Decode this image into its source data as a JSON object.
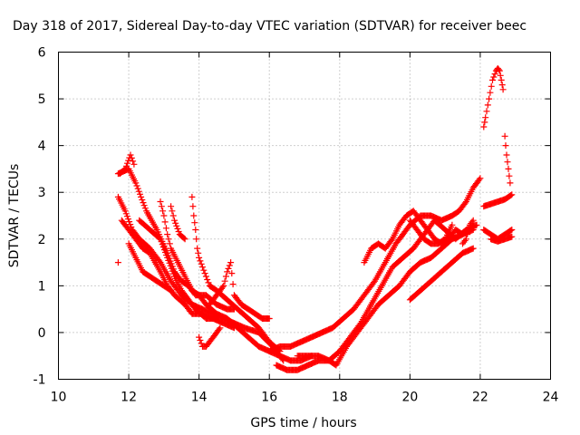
{
  "chart_data": {
    "type": "scatter",
    "title": "Day 318 of 2017, Sidereal Day-to-day VTEC variation (SDTVAR) for receiver beec",
    "xlabel": "GPS time / hours",
    "ylabel": "SDTVAR / TECUs",
    "xlim": [
      10,
      24
    ],
    "ylim": [
      -1,
      6
    ],
    "xticks": [
      "10",
      "12",
      "14",
      "16",
      "18",
      "20",
      "22",
      "24"
    ],
    "yticks": [
      "-1",
      "0",
      "1",
      "2",
      "3",
      "4",
      "5",
      "6"
    ],
    "grid": true,
    "marker": "+",
    "color": "#ff0000",
    "series": [
      {
        "name": "t1",
        "x": [
          11.7,
          12.0,
          12.2,
          12.5,
          12.8,
          13.1,
          13.3,
          13.5,
          13.7,
          13.9,
          14.2,
          14.5,
          14.8,
          15.0
        ],
        "y": [
          3.4,
          3.5,
          3.2,
          2.6,
          2.2,
          1.7,
          1.3,
          1.1,
          1.0,
          0.8,
          0.8,
          0.6,
          0.5,
          0.5
        ]
      },
      {
        "name": "t1b",
        "x": [
          11.75,
          11.9,
          12.05,
          12.15
        ],
        "y": [
          3.4,
          3.5,
          3.8,
          3.6
        ]
      },
      {
        "name": "t2",
        "x": [
          11.7,
          11.9,
          12.1,
          12.3,
          12.6,
          12.9,
          13.2,
          13.5,
          13.8,
          14.1,
          14.4,
          14.7,
          15.0,
          15.3,
          15.7,
          16.1,
          16.4
        ],
        "y": [
          2.9,
          2.6,
          2.2,
          2.0,
          1.8,
          1.5,
          1.1,
          0.8,
          0.6,
          0.5,
          0.4,
          0.3,
          0.2,
          0.1,
          0.0,
          -0.3,
          -0.6
        ]
      },
      {
        "name": "t3",
        "x": [
          11.8,
          12.0,
          12.2,
          12.4,
          12.6,
          12.9,
          13.1,
          13.3,
          13.6,
          13.8,
          14.1,
          14.4,
          14.7,
          15.0
        ],
        "y": [
          2.4,
          2.2,
          2.0,
          1.8,
          1.7,
          1.3,
          1.0,
          0.8,
          0.6,
          0.4,
          0.4,
          0.3,
          0.2,
          0.1
        ]
      },
      {
        "name": "t4",
        "x": [
          12.3,
          12.6,
          12.9,
          13.1,
          13.3,
          13.5,
          13.7,
          13.9,
          14.2,
          14.5
        ],
        "y": [
          2.4,
          2.2,
          2.0,
          1.6,
          1.2,
          0.9,
          0.7,
          0.5,
          0.3,
          0.3
        ]
      },
      {
        "name": "t5",
        "x": [
          12.9,
          13.0,
          13.1,
          13.2,
          13.4,
          13.6,
          13.8,
          14.0,
          14.2,
          14.5,
          14.8,
          15.1,
          15.4,
          15.7,
          16.0,
          16.3,
          16.6,
          16.9,
          17.2
        ],
        "y": [
          2.8,
          2.5,
          2.1,
          1.8,
          1.5,
          1.2,
          0.9,
          0.8,
          0.6,
          0.4,
          0.3,
          0.1,
          -0.1,
          -0.3,
          -0.4,
          -0.5,
          -0.6,
          -0.6,
          -0.5
        ]
      },
      {
        "name": "t6",
        "x": [
          13.8,
          13.85,
          13.9,
          13.95,
          14.0,
          14.1,
          14.2,
          14.3,
          14.5,
          14.8,
          15.1,
          15.4,
          15.7,
          16.0,
          16.3
        ],
        "y": [
          2.9,
          2.5,
          2.2,
          1.8,
          1.6,
          1.4,
          1.2,
          1.0,
          0.9,
          0.7,
          0.5,
          0.3,
          0.1,
          -0.2,
          -0.4
        ]
      },
      {
        "name": "t7",
        "x": [
          13.2,
          13.3,
          13.45,
          13.6
        ],
        "y": [
          2.7,
          2.4,
          2.1,
          2.0
        ]
      },
      {
        "name": "t8",
        "x": [
          12.0,
          12.2,
          12.4,
          12.6,
          12.8,
          13.0,
          13.2
        ],
        "y": [
          1.9,
          1.6,
          1.3,
          1.2,
          1.1,
          1.0,
          0.9
        ]
      },
      {
        "name": "t9",
        "x": [
          14.3,
          14.5,
          14.7,
          14.8,
          14.9,
          15.0,
          15.2,
          15.4,
          15.6,
          15.8,
          16.0
        ],
        "y": [
          0.6,
          0.8,
          1.0,
          1.3,
          1.5,
          0.8,
          0.6,
          0.5,
          0.4,
          0.3,
          0.3
        ]
      },
      {
        "name": "t10",
        "x": [
          14.0,
          14.1,
          14.2,
          14.4,
          14.6
        ],
        "y": [
          -0.1,
          -0.3,
          -0.3,
          -0.1,
          0.1
        ]
      },
      {
        "name": "t11",
        "x": [
          16.0,
          16.3,
          16.6,
          16.9,
          17.2,
          17.5,
          17.8,
          18.1,
          18.4,
          18.7,
          19.0,
          19.3,
          19.6,
          19.8,
          20.0,
          20.3,
          20.6,
          20.9,
          21.2,
          21.4,
          21.6,
          21.8,
          22.0
        ],
        "y": [
          -0.4,
          -0.3,
          -0.3,
          -0.2,
          -0.1,
          0.0,
          0.1,
          0.3,
          0.5,
          0.8,
          1.1,
          1.5,
          1.9,
          2.1,
          2.3,
          2.5,
          2.5,
          2.4,
          2.5,
          2.6,
          2.8,
          3.1,
          3.3
        ]
      },
      {
        "name": "t12",
        "x": [
          16.2,
          16.5,
          16.8,
          17.1,
          17.4,
          17.7,
          18.0,
          18.3,
          18.6,
          18.9,
          19.2,
          19.5,
          19.8,
          20.1,
          20.4,
          20.7,
          21.0,
          21.3,
          21.6,
          21.9
        ],
        "y": [
          -0.7,
          -0.8,
          -0.8,
          -0.7,
          -0.6,
          -0.6,
          -0.4,
          -0.1,
          0.2,
          0.6,
          1.0,
          1.4,
          1.6,
          1.8,
          2.1,
          2.4,
          2.2,
          2.0,
          2.2,
          2.3
        ]
      },
      {
        "name": "t13",
        "x": [
          16.8,
          17.1,
          17.4,
          17.7,
          17.9,
          18.2,
          18.5,
          18.8,
          19.1,
          19.4,
          19.7,
          20.0,
          20.3,
          20.6,
          20.9,
          21.2,
          21.5,
          21.8
        ],
        "y": [
          -0.5,
          -0.5,
          -0.5,
          -0.6,
          -0.7,
          -0.3,
          0.0,
          0.3,
          0.6,
          0.8,
          1.0,
          1.3,
          1.5,
          1.6,
          1.8,
          2.0,
          2.1,
          2.2
        ]
      },
      {
        "name": "t14",
        "x": [
          18.7,
          18.9,
          19.1,
          19.3,
          19.5,
          19.7,
          19.9,
          20.1,
          20.3,
          20.5,
          20.7,
          20.9,
          21.1,
          21.3,
          21.5
        ],
        "y": [
          1.5,
          1.8,
          1.9,
          1.8,
          2.0,
          2.3,
          2.5,
          2.6,
          2.4,
          2.2,
          2.0,
          1.9,
          2.0,
          2.2,
          2.1
        ]
      },
      {
        "name": "t15",
        "x": [
          20.0,
          20.3,
          20.6,
          20.9,
          21.2,
          21.5,
          21.8
        ],
        "y": [
          0.7,
          0.9,
          1.1,
          1.3,
          1.5,
          1.7,
          1.8
        ]
      },
      {
        "name": "t16",
        "x": [
          20.0,
          20.2,
          20.4,
          20.6,
          20.8,
          21.0,
          21.2
        ],
        "y": [
          2.4,
          2.2,
          2.0,
          1.9,
          1.9,
          2.0,
          2.3
        ]
      },
      {
        "name": "t17",
        "x": [
          21.5,
          21.6,
          21.7,
          21.8
        ],
        "y": [
          1.9,
          2.0,
          2.3,
          2.4
        ]
      },
      {
        "name": "t18",
        "x": [
          22.1,
          22.15,
          22.25,
          22.35,
          22.45,
          22.5,
          22.55,
          22.6,
          22.65
        ],
        "y": [
          4.4,
          4.6,
          5.0,
          5.4,
          5.6,
          5.65,
          5.6,
          5.4,
          5.2
        ]
      },
      {
        "name": "t19",
        "x": [
          22.7,
          22.75,
          22.8,
          22.85
        ],
        "y": [
          4.2,
          3.8,
          3.5,
          3.2
        ]
      },
      {
        "name": "t20",
        "x": [
          22.1,
          22.3,
          22.5,
          22.7,
          22.9
        ],
        "y": [
          2.7,
          2.75,
          2.8,
          2.85,
          2.95
        ]
      },
      {
        "name": "t21",
        "x": [
          22.1,
          22.3,
          22.5,
          22.7,
          22.9
        ],
        "y": [
          2.2,
          2.1,
          2.0,
          2.1,
          2.2
        ]
      },
      {
        "name": "t22",
        "x": [
          22.3,
          22.5,
          22.7,
          22.9
        ],
        "y": [
          2.0,
          1.95,
          2.0,
          2.05
        ]
      }
    ],
    "stray_points": {
      "x": [
        11.7
      ],
      "y": [
        1.5
      ]
    }
  }
}
